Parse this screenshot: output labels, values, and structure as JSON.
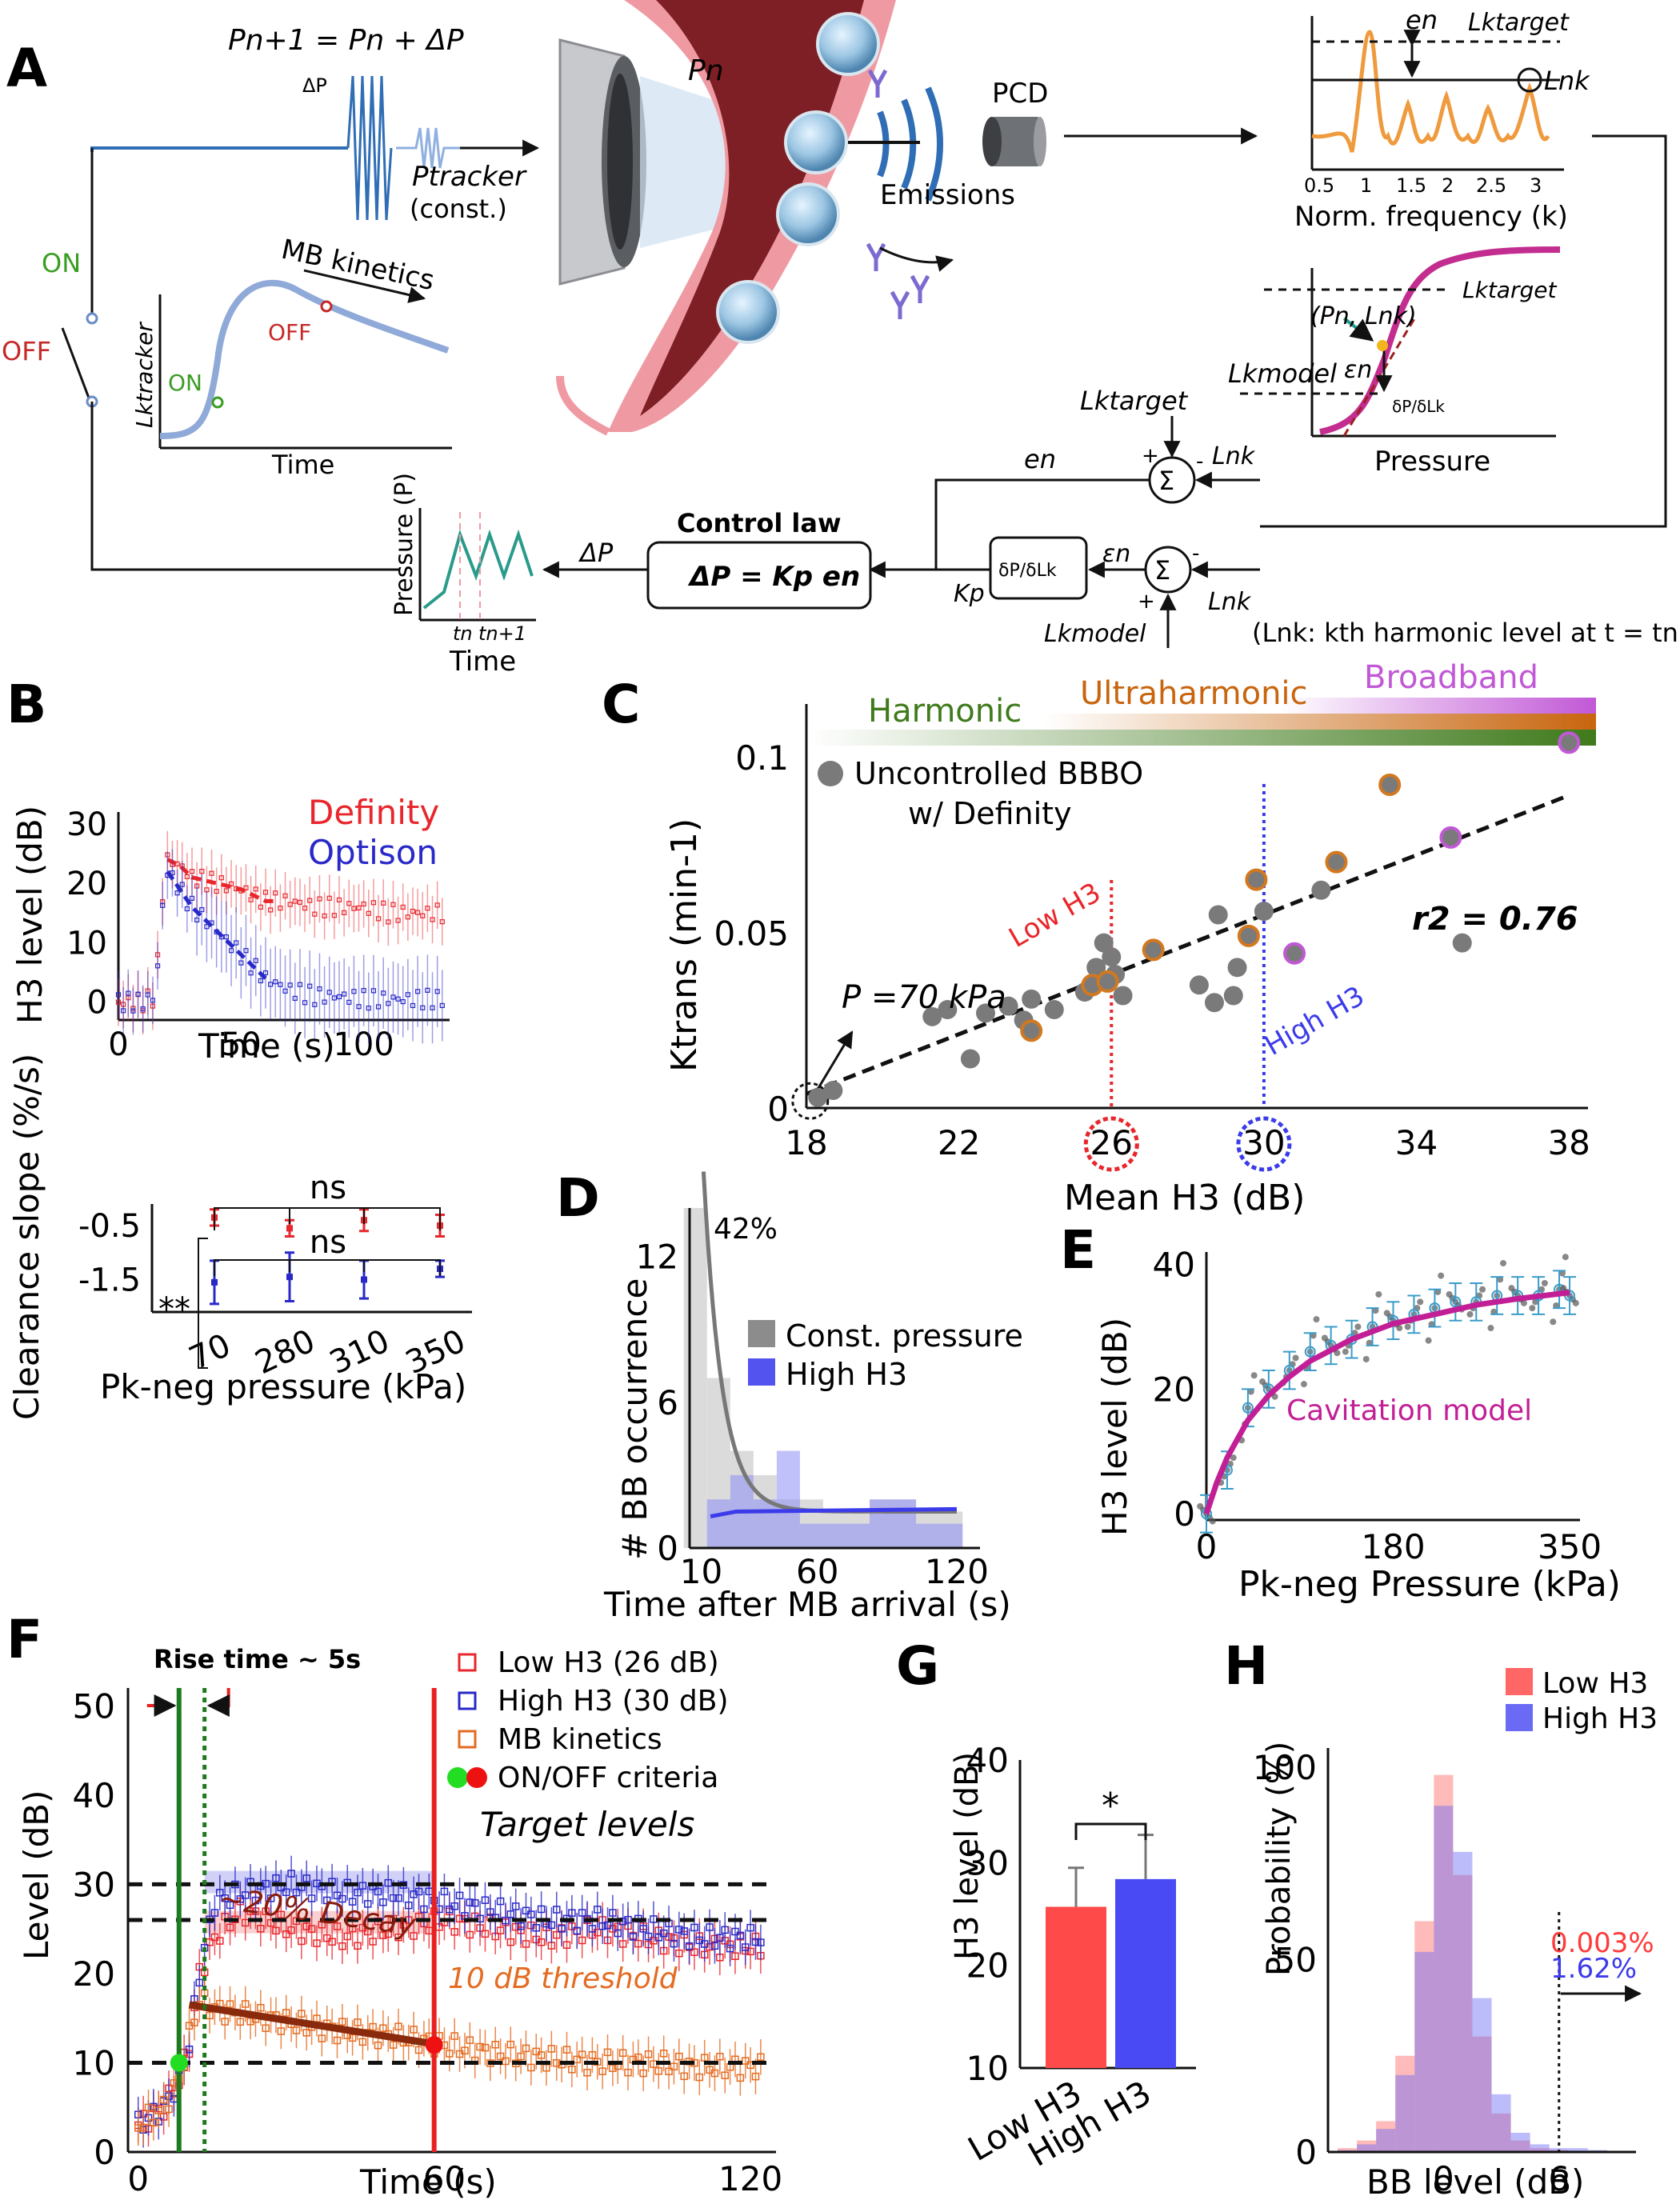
{
  "panels": {
    "A": {
      "letter": "A",
      "update_eq": "Pn+1 = Pn + ΔP",
      "delta_p": "ΔP",
      "tracker": "Ptracker",
      "tracker_const": "(const.)",
      "on": "ON",
      "off": "OFF",
      "mb_kinetics": "MB kinetics",
      "ltracker": "Lktracker",
      "time": "Time",
      "pn": "Pn",
      "pcd": "PCD",
      "emissions": "Emissions",
      "en": "en",
      "ltarget": "Lktarget",
      "lnk": "Lnk",
      "norm_freq": "Norm. frequency (k)",
      "freq_ticks": [
        "0.5",
        "1",
        "1.5",
        "2",
        "2.5",
        "3"
      ],
      "pn_lnk": "(Pn, Lnk)",
      "lmodel": "Lkmodel",
      "eps_n": "εn",
      "dP_dL": "δP/δLk",
      "pressure": "Pressure",
      "control_law_title": "Control law",
      "control_law_eq": "ΔP = Kp en",
      "kp": "Kp",
      "pressure_axis": "Pressure (P)",
      "tn": "tn",
      "tn1": "tn+1",
      "harmonic_note": "(Lnk: kth harmonic level at t = tn)",
      "plus": "+",
      "minus": "-",
      "sigma": "Σ"
    },
    "B_top": {
      "letter": "B",
      "legend": [
        "Definity",
        "Optison"
      ],
      "colors": {
        "definity": "#e8262b",
        "optison": "#2929c8"
      },
      "ylabel": "H3 level (dB)",
      "xlabel": "Time (s)",
      "xticks": [
        "0",
        "50",
        "100"
      ],
      "yticks": [
        "0",
        "10",
        "20",
        "30"
      ]
    },
    "B_bottom": {
      "ylabel": "Clearance slope (%/s)",
      "xlabel": "Pk-neg pressure (kPa)",
      "xticks": [
        "70",
        "280",
        "310",
        "350"
      ],
      "yticks": [
        "-0.5",
        "-1.5"
      ],
      "sig": [
        "ns",
        "ns",
        "**"
      ]
    },
    "C": {
      "letter": "C",
      "bands": [
        "Harmonic",
        "Ultraharmonic",
        "Broadband"
      ],
      "band_colors": {
        "harmonic": "#3f7a1b",
        "ultraharmonic": "#c8650e",
        "broadband": "#c158d6"
      },
      "legend": "Uncontrolled BBBO",
      "legend2": "w/ Definity",
      "ylabel": "Ktrans (min-1)",
      "xlabel": "Mean H3 (dB)",
      "xticks": [
        "18",
        "22",
        "26",
        "30",
        "34",
        "38"
      ],
      "yticks": [
        "0",
        "0.05",
        "0.1"
      ],
      "r2": "r2 = 0.76",
      "low": "Low H3",
      "high": "High H3",
      "p70": "P =70 kPa"
    },
    "D": {
      "letter": "D",
      "ylabel": "# BB occurrence",
      "xlabel": "Time after MB arrival (s)",
      "xticks": [
        "10",
        "60",
        "120"
      ],
      "yticks": [
        "0",
        "6",
        "12"
      ],
      "pct": "42%",
      "legend": [
        "Const. pressure",
        "High H3"
      ]
    },
    "E": {
      "letter": "E",
      "ylabel": "H3 level (dB)",
      "xlabel": "Pk-neg Pressure (kPa)",
      "xticks": [
        "0",
        "180",
        "350"
      ],
      "yticks": [
        "0",
        "20",
        "40"
      ],
      "model": "Cavitation model"
    },
    "F": {
      "letter": "F",
      "rise": "Rise time ~ 5s",
      "legend": [
        "Low H3 (26 dB)",
        "High H3 (30 dB)",
        "MB kinetics",
        "ON/OFF criteria"
      ],
      "target": "Target levels",
      "decay": "~20% Decay",
      "threshold": "10 dB threshold",
      "ylabel": "Level (dB)",
      "xlabel": "Time (s)",
      "xticks": [
        "0",
        "60",
        "120"
      ],
      "yticks": [
        "0",
        "10",
        "20",
        "30",
        "40",
        "50"
      ]
    },
    "G": {
      "letter": "G",
      "ylabel": "H3 level (dB)",
      "categories": [
        "Low H3",
        "High H3"
      ],
      "yticks": [
        "10",
        "20",
        "30",
        "40"
      ],
      "sig": "*"
    },
    "H": {
      "letter": "H",
      "ylabel": "Probability (%)",
      "xlabel": "BB level (dB)",
      "xticks": [
        "0",
        "6"
      ],
      "yticks": [
        "0",
        "50",
        "100"
      ],
      "legend": [
        "Low H3",
        "High H3"
      ],
      "pct_low": "0.003%",
      "pct_high": "1.62%"
    }
  },
  "chart_data": [
    {
      "type": "line",
      "panel": "B-top",
      "xlabel": "Time (s)",
      "ylabel": "H3 level (dB)",
      "xlim": [
        0,
        135
      ],
      "ylim": [
        -3,
        32
      ],
      "series": [
        {
          "name": "Definity",
          "x": [
            0,
            5,
            10,
            15,
            18,
            20,
            25,
            30,
            40,
            50,
            60,
            70,
            80,
            90,
            100,
            110,
            120,
            130
          ],
          "y": [
            0,
            0,
            0,
            1,
            18,
            24,
            23,
            21,
            20,
            19,
            17,
            17,
            16,
            16,
            16,
            15,
            15,
            15
          ]
        },
        {
          "name": "Optison",
          "x": [
            0,
            5,
            10,
            15,
            18,
            20,
            25,
            30,
            40,
            50,
            60,
            70,
            80,
            90,
            100,
            110,
            120,
            130
          ],
          "y": [
            0,
            0,
            0,
            1,
            16,
            22,
            19,
            16,
            12,
            8,
            4,
            2,
            1,
            1,
            0.5,
            0.5,
            0.5,
            0.5
          ]
        }
      ]
    },
    {
      "type": "scatter",
      "panel": "B-bottom",
      "categories": [
        "70",
        "280",
        "310",
        "350"
      ],
      "xlabel": "Pk-neg pressure (kPa)",
      "ylabel": "Clearance slope (%/s)",
      "ylim": [
        -2.1,
        -0.1
      ],
      "series": [
        {
          "name": "Definity",
          "values": [
            -0.35,
            -0.55,
            -0.4,
            -0.5
          ],
          "errors": [
            0.15,
            0.15,
            0.2,
            0.2
          ]
        },
        {
          "name": "Optison",
          "values": [
            -1.55,
            -1.45,
            -1.5,
            -1.3
          ],
          "errors": [
            0.4,
            0.45,
            0.35,
            0.15
          ]
        }
      ]
    },
    {
      "type": "scatter",
      "panel": "C",
      "xlabel": "Mean H3 (dB)",
      "ylabel": "Ktrans (min-1)",
      "xlim": [
        18,
        38.5
      ],
      "ylim": [
        0,
        0.115
      ],
      "series": [
        {
          "name": "Harmonic",
          "x": [
            18.3,
            18.7,
            21.3,
            21.7,
            22.3,
            22.7,
            23.3,
            23.7,
            23.9,
            24.5,
            25.3,
            25.6,
            25.8,
            26,
            26.1,
            26.3,
            28.3,
            28.7,
            28.8,
            29.2,
            29.3,
            30,
            31.5,
            35.2
          ],
          "y": [
            0.003,
            0.005,
            0.026,
            0.028,
            0.014,
            0.027,
            0.029,
            0.025,
            0.031,
            0.028,
            0.033,
            0.04,
            0.047,
            0.043,
            0.038,
            0.032,
            0.035,
            0.03,
            0.055,
            0.032,
            0.04,
            0.056,
            0.062,
            0.047
          ]
        },
        {
          "name": "Ultraharmonic",
          "x": [
            23.9,
            25.5,
            25.9,
            27.1,
            29.6,
            29.8,
            31.9,
            33.3
          ],
          "y": [
            0.022,
            0.035,
            0.036,
            0.045,
            0.049,
            0.065,
            0.07,
            0.092
          ]
        },
        {
          "name": "Broadband",
          "x": [
            30.8,
            34.9,
            38
          ],
          "y": [
            0.044,
            0.077,
            0.104
          ]
        }
      ],
      "fit": {
        "x": [
          18,
          38
        ],
        "y": [
          0.004,
          0.089
        ]
      }
    },
    {
      "type": "bar",
      "panel": "D",
      "xlabel": "Time after MB arrival (s)",
      "ylabel": "# BB occurrence",
      "xlim": [
        5,
        130
      ],
      "ylim": [
        0,
        14
      ],
      "series": [
        {
          "name": "Const. pressure",
          "x": [
            7.5,
            17.5,
            27.5,
            37.5,
            47.5,
            57.5,
            67.5,
            77.5,
            87.5,
            97.5,
            107.5,
            117.5
          ],
          "values": [
            14,
            7,
            4,
            3,
            2,
            2,
            1.5,
            1.5,
            2,
            2,
            1.5,
            1.5
          ]
        },
        {
          "name": "High H3",
          "x": [
            7.5,
            17.5,
            27.5,
            37.5,
            47.5,
            57.5,
            67.5,
            77.5,
            87.5,
            97.5,
            107.5,
            117.5
          ],
          "values": [
            0,
            2,
            3,
            2,
            4,
            1,
            1,
            1,
            2,
            2,
            1,
            1
          ]
        }
      ]
    },
    {
      "type": "scatter",
      "panel": "E",
      "xlabel": "Pk-neg Pressure (kPa)",
      "ylabel": "H3 level (dB)",
      "xlim": [
        0,
        360
      ],
      "ylim": [
        -1,
        42
      ],
      "series": [
        {
          "name": "Measured",
          "x": [
            0,
            20,
            40,
            60,
            80,
            100,
            120,
            140,
            160,
            180,
            200,
            220,
            240,
            260,
            280,
            300,
            320,
            340,
            350
          ],
          "y": [
            0,
            7,
            17,
            20,
            23,
            26,
            27,
            28,
            30,
            31,
            32,
            33,
            34,
            34,
            35,
            35,
            35,
            36,
            35
          ]
        },
        {
          "name": "Cavitation model",
          "x": [
            0,
            10,
            20,
            40,
            60,
            80,
            100,
            140,
            180,
            220,
            260,
            300,
            350
          ],
          "y": [
            0,
            5,
            9,
            15,
            19,
            22,
            24.5,
            28,
            30.5,
            32,
            33.5,
            34.5,
            35.5
          ]
        }
      ]
    },
    {
      "type": "line",
      "panel": "F",
      "xlabel": "Time (s)",
      "ylabel": "Level (dB)",
      "xlim": [
        -2,
        125
      ],
      "ylim": [
        0,
        52
      ],
      "series": [
        {
          "name": "Low H3 (26 dB)",
          "x": [
            0,
            5,
            8,
            10,
            12,
            15,
            20,
            30,
            40,
            50,
            60,
            70,
            80,
            90,
            100,
            110,
            120
          ],
          "y": [
            3,
            5,
            8,
            12,
            20,
            24,
            27,
            25,
            24,
            25,
            26,
            25,
            24,
            25,
            24,
            23,
            23
          ]
        },
        {
          "name": "High H3 (30 dB)",
          "x": [
            0,
            5,
            8,
            10,
            12,
            15,
            20,
            30,
            40,
            50,
            60,
            70,
            80,
            90,
            100,
            110,
            120
          ],
          "y": [
            3,
            5,
            8,
            12,
            20,
            28,
            29,
            30,
            29,
            29,
            28,
            27,
            26,
            26,
            25,
            24,
            24
          ]
        },
        {
          "name": "MB kinetics",
          "x": [
            0,
            5,
            8,
            10,
            12,
            15,
            20,
            30,
            40,
            50,
            60,
            70,
            80,
            90,
            100,
            110,
            120
          ],
          "y": [
            3,
            5,
            8,
            13,
            17,
            16,
            15.5,
            14.5,
            13.5,
            13,
            12,
            11,
            10.5,
            10,
            10,
            9.5,
            9.5
          ]
        }
      ],
      "targets": [
        30,
        26
      ],
      "threshold": 10
    },
    {
      "type": "bar",
      "panel": "G",
      "categories": [
        "Low H3",
        "High H3"
      ],
      "ylabel": "H3 level (dB)",
      "ylim": [
        10,
        40
      ],
      "values": [
        25.7,
        28.4
      ],
      "errors": [
        3.8,
        4.3
      ]
    },
    {
      "type": "bar",
      "panel": "H",
      "xlabel": "BB level (dB)",
      "ylabel": "Probability (%)",
      "xlim": [
        -6,
        10
      ],
      "ylim": [
        0,
        105
      ],
      "x": [
        -5,
        -4,
        -3,
        -2,
        -1,
        0,
        1,
        2,
        3,
        4,
        5,
        6,
        7,
        8
      ],
      "series": [
        {
          "name": "Low H3",
          "values": [
            1,
            3,
            8,
            25,
            60,
            98,
            72,
            30,
            10,
            3,
            1,
            0.5,
            0,
            0
          ]
        },
        {
          "name": "High H3",
          "values": [
            0.5,
            2,
            6,
            20,
            52,
            90,
            78,
            40,
            15,
            5,
            2,
            1,
            1,
            0.5
          ]
        }
      ]
    }
  ]
}
